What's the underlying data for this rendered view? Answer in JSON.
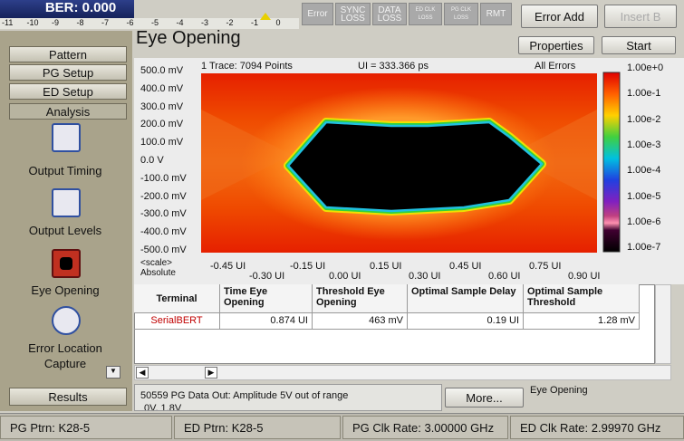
{
  "top": {
    "ber": "BER: 0.000",
    "scale": [
      "-11",
      "-10",
      "-9",
      "-8",
      "-7",
      "-6",
      "-5",
      "-4",
      "-3",
      "-2",
      "-1",
      "0"
    ],
    "indicators": [
      "Error",
      "SYNC LOSS",
      "DATA LOSS",
      "ED CLK LOSS",
      "PG CLK LOSS",
      "RMT"
    ],
    "buttons": [
      "Error Add",
      "Insert B"
    ]
  },
  "sidebar": {
    "tabs": [
      "Pattern",
      "PG Setup",
      "ED Setup",
      "Analysis"
    ],
    "tools": [
      "Output Timing",
      "Output Levels",
      "Eye Opening",
      "Error Location Capture"
    ],
    "results": "Results"
  },
  "panel": {
    "title": "Eye Opening",
    "buttons": [
      "Properties",
      "Start"
    ]
  },
  "eye": {
    "trace": "1 Trace: 7094 Points",
    "ui": "UI = 333.366 ps",
    "mode": "All Errors",
    "y_labels": [
      "500.0 mV",
      "400.0 mV",
      "300.0 mV",
      "200.0 mV",
      "100.0 mV",
      "0.0 V",
      "-100.0 mV",
      "-200.0 mV",
      "-300.0 mV",
      "-400.0 mV",
      "-500.0 mV"
    ],
    "scale_labels": [
      "1.00e+0",
      "1.00e-1",
      "1.00e-2",
      "1.00e-3",
      "1.00e-4",
      "1.00e-5",
      "1.00e-6",
      "1.00e-7"
    ],
    "x_mode": [
      "<scale>",
      "Absolute"
    ],
    "x_labels_top": [
      "-0.45 UI",
      "-0.15 UI",
      "0.15 UI",
      "0.45 UI",
      "0.75 UI"
    ],
    "x_labels_bottom": [
      "-0.30 UI",
      "0.00 UI",
      "0.30 UI",
      "0.60 UI",
      "0.90 UI"
    ]
  },
  "table": {
    "headers": [
      "Terminal",
      "Time Eye Opening",
      "Threshold Eye Opening",
      "Optimal Sample Delay",
      "Optimal Sample Threshold"
    ],
    "rows": [
      [
        "SerialBERT",
        "0.874 UI",
        "463 mV",
        "0.19 UI",
        "1.28 mV"
      ]
    ]
  },
  "status": {
    "message": "50559 PG Data Out: Amplitude 5V out of range",
    "message_cont": "0V, 1.8V",
    "more": "More...",
    "context": "Eye Opening"
  },
  "statusbar": [
    "PG Ptrn: K28-5",
    "ED Ptrn: K28-5",
    "PG Clk Rate: 3.00000 GHz",
    "ED Clk Rate: 2.99970 GHz"
  ]
}
